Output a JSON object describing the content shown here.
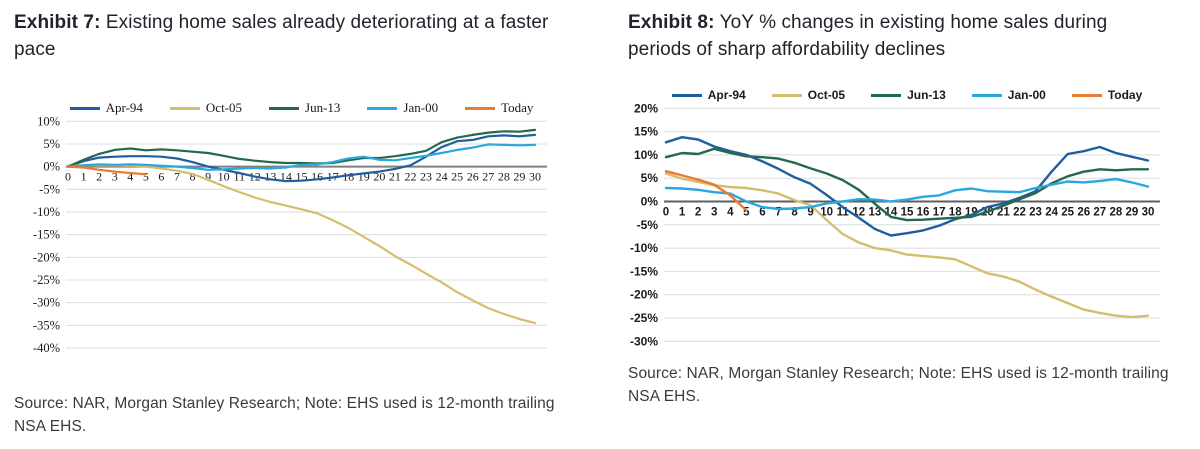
{
  "page": {
    "background": "#ffffff"
  },
  "exhibit7": {
    "title_bold": "Exhibit 7:",
    "title_rest": "Existing home sales already deteriorating at a faster pace",
    "source": "Source: NAR, Morgan Stanley Research; Note: EHS used is 12-month trailing NSA EHS."
  },
  "exhibit8": {
    "title_bold": "Exhibit 8:",
    "title_rest": "YoY % changes in existing home sales during periods of sharp affordability declines",
    "source": "Source: NAR, Morgan Stanley Research; Note: EHS used is 12-month trailing NSA EHS."
  },
  "chart_data": [
    {
      "exhibit": "Exhibit 7",
      "type": "line",
      "title": "Existing home sales already deteriorating at a faster pace",
      "xlabel": "",
      "ylabel": "",
      "x": [
        0,
        1,
        2,
        3,
        4,
        5,
        6,
        7,
        8,
        9,
        10,
        11,
        12,
        13,
        14,
        15,
        16,
        17,
        18,
        19,
        20,
        21,
        22,
        23,
        24,
        25,
        26,
        27,
        28,
        29,
        30
      ],
      "ylim": [
        -40,
        10
      ],
      "ytick_step": 5,
      "ytick_suffix": "%",
      "grid": true,
      "legend_position": "top",
      "series": [
        {
          "name": "Apr-94",
          "color": "#1f5fa0",
          "values": [
            0,
            1.2,
            2.0,
            2.2,
            2.3,
            2.3,
            2.2,
            1.8,
            1.0,
            0.0,
            -0.7,
            -1.4,
            -2.2,
            -2.8,
            -3.2,
            -3.1,
            -2.8,
            -2.4,
            -1.9,
            -1.5,
            -1.1,
            -0.5,
            0.3,
            2.2,
            4.3,
            5.6,
            5.9,
            6.7,
            6.9,
            6.7,
            7.0
          ]
        },
        {
          "name": "Oct-05",
          "color": "#d5bd6e",
          "values": [
            0.2,
            0.3,
            0.3,
            0.3,
            0.2,
            0.0,
            -0.4,
            -0.9,
            -1.6,
            -2.9,
            -4.3,
            -5.6,
            -6.8,
            -7.8,
            -8.6,
            -9.4,
            -10.3,
            -11.8,
            -13.5,
            -15.5,
            -17.5,
            -19.7,
            -21.6,
            -23.6,
            -25.5,
            -27.7,
            -29.5,
            -31.2,
            -32.5,
            -33.6,
            -34.5
          ]
        },
        {
          "name": "Jun-13",
          "color": "#24694e",
          "values": [
            0,
            1.5,
            2.8,
            3.7,
            4.0,
            3.6,
            3.8,
            3.6,
            3.3,
            3.0,
            2.4,
            1.7,
            1.3,
            1.0,
            0.8,
            0.8,
            0.7,
            0.8,
            1.4,
            1.9,
            1.9,
            2.3,
            2.8,
            3.5,
            5.4,
            6.4,
            7.0,
            7.5,
            7.8,
            7.7,
            8.1
          ]
        },
        {
          "name": "Jan-00",
          "color": "#2ba7df",
          "values": [
            0,
            0.3,
            0.5,
            0.4,
            0.5,
            0.4,
            0.2,
            0.0,
            -0.3,
            -0.7,
            -0.6,
            -0.4,
            -0.3,
            -0.4,
            -0.2,
            0.4,
            0.5,
            1.0,
            1.8,
            2.2,
            1.5,
            1.4,
            1.9,
            2.4,
            3.0,
            3.7,
            4.2,
            4.9,
            4.8,
            4.7,
            4.8
          ]
        },
        {
          "name": "Today",
          "color": "#e97a30",
          "values": [
            0,
            -0.2,
            -0.7,
            -1.1,
            -1.4,
            -1.7
          ]
        }
      ]
    },
    {
      "exhibit": "Exhibit 8",
      "type": "line",
      "title": "YoY % changes in existing home sales during periods of sharp affordability declines",
      "xlabel": "",
      "ylabel": "",
      "x": [
        0,
        1,
        2,
        3,
        4,
        5,
        6,
        7,
        8,
        9,
        10,
        11,
        12,
        13,
        14,
        15,
        16,
        17,
        18,
        19,
        20,
        21,
        22,
        23,
        24,
        25,
        26,
        27,
        28,
        29,
        30
      ],
      "ylim": [
        -30,
        20
      ],
      "ytick_step": 5,
      "ytick_suffix": "%",
      "grid": true,
      "legend_position": "top",
      "series": [
        {
          "name": "Apr-94",
          "color": "#1f5fa0",
          "values": [
            12.7,
            13.8,
            13.3,
            11.8,
            10.8,
            10.0,
            8.6,
            7.0,
            5.2,
            3.8,
            1.4,
            -1.2,
            -3.5,
            -5.9,
            -7.3,
            -6.8,
            -6.2,
            -5.2,
            -3.8,
            -2.9,
            -1.2,
            -0.4,
            0.8,
            2.2,
            6.4,
            10.2,
            10.8,
            11.7,
            10.4,
            9.6,
            8.8
          ]
        },
        {
          "name": "Oct-05",
          "color": "#d5bd6e",
          "values": [
            6.0,
            4.9,
            4.2,
            3.5,
            3.1,
            2.9,
            2.4,
            1.7,
            0.3,
            -0.8,
            -4.0,
            -7.0,
            -8.8,
            -10.0,
            -10.5,
            -11.4,
            -11.7,
            -12.0,
            -12.4,
            -13.9,
            -15.4,
            -16.1,
            -17.2,
            -18.9,
            -20.4,
            -21.8,
            -23.2,
            -23.9,
            -24.5,
            -24.8,
            -24.5
          ]
        },
        {
          "name": "Jun-13",
          "color": "#24694e",
          "values": [
            9.5,
            10.4,
            10.2,
            11.3,
            10.4,
            9.7,
            9.5,
            9.2,
            8.3,
            7.1,
            6.0,
            4.6,
            2.5,
            -0.5,
            -3.3,
            -4.0,
            -3.9,
            -3.7,
            -3.5,
            -3.3,
            -2.2,
            -0.9,
            0.5,
            1.8,
            3.9,
            5.4,
            6.4,
            6.9,
            6.7,
            6.9,
            6.9
          ]
        },
        {
          "name": "Jan-00",
          "color": "#2ba7df",
          "values": [
            2.9,
            2.8,
            2.5,
            2.0,
            1.7,
            0.0,
            -1.2,
            -1.6,
            -1.5,
            -1.2,
            -0.4,
            0.0,
            0.5,
            0.4,
            0.0,
            0.4,
            1.0,
            1.3,
            2.4,
            2.8,
            2.2,
            2.1,
            2.0,
            2.9,
            3.6,
            4.3,
            4.1,
            4.4,
            4.8,
            4.1,
            3.2
          ]
        },
        {
          "name": "Today",
          "color": "#e97a30",
          "values": [
            6.5,
            5.6,
            4.7,
            3.6,
            1.3,
            -1.9
          ]
        }
      ]
    }
  ]
}
